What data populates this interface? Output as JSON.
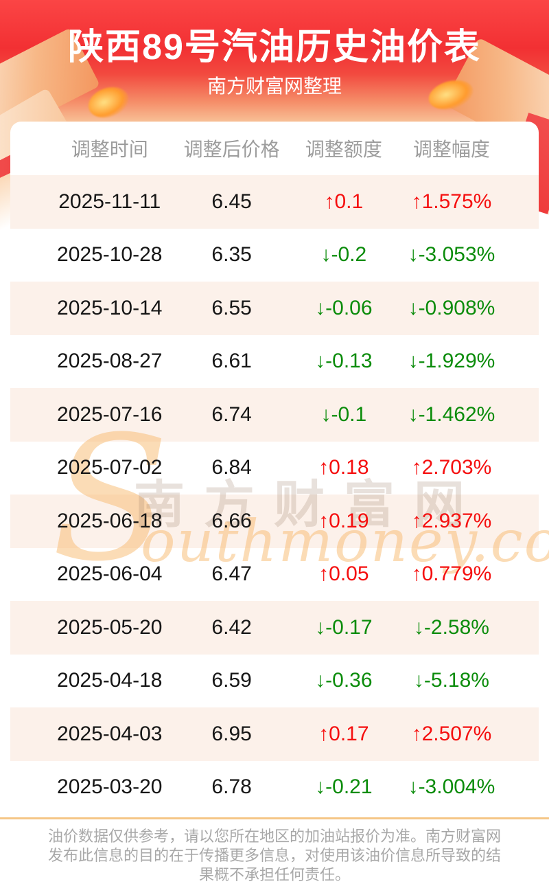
{
  "hero": {
    "title": "陕西89号汽油历史油价表",
    "subtitle": "南方财富网整理"
  },
  "table": {
    "columns": [
      "调整时间",
      "调整后价格",
      "调整额度",
      "调整幅度"
    ],
    "rows": [
      {
        "date": "2025-11-11",
        "price": "6.45",
        "change": "↑0.1",
        "percent": "↑1.575%",
        "dir": "up"
      },
      {
        "date": "2025-10-28",
        "price": "6.35",
        "change": "↓-0.2",
        "percent": "↓-3.053%",
        "dir": "down"
      },
      {
        "date": "2025-10-14",
        "price": "6.55",
        "change": "↓-0.06",
        "percent": "↓-0.908%",
        "dir": "down"
      },
      {
        "date": "2025-08-27",
        "price": "6.61",
        "change": "↓-0.13",
        "percent": "↓-1.929%",
        "dir": "down"
      },
      {
        "date": "2025-07-16",
        "price": "6.74",
        "change": "↓-0.1",
        "percent": "↓-1.462%",
        "dir": "down"
      },
      {
        "date": "2025-07-02",
        "price": "6.84",
        "change": "↑0.18",
        "percent": "↑2.703%",
        "dir": "up"
      },
      {
        "date": "2025-06-18",
        "price": "6.66",
        "change": "↑0.19",
        "percent": "↑2.937%",
        "dir": "up"
      },
      {
        "date": "2025-06-04",
        "price": "6.47",
        "change": "↑0.05",
        "percent": "↑0.779%",
        "dir": "up"
      },
      {
        "date": "2025-05-20",
        "price": "6.42",
        "change": "↓-0.17",
        "percent": "↓-2.58%",
        "dir": "down"
      },
      {
        "date": "2025-04-18",
        "price": "6.59",
        "change": "↓-0.36",
        "percent": "↓-5.18%",
        "dir": "down"
      },
      {
        "date": "2025-04-03",
        "price": "6.95",
        "change": "↑0.17",
        "percent": "↑2.507%",
        "dir": "up"
      },
      {
        "date": "2025-03-20",
        "price": "6.78",
        "change": "↓-0.21",
        "percent": "↓-3.004%",
        "dir": "down"
      }
    ]
  },
  "watermark": {
    "cn": "南方财富网",
    "en_initial": "S",
    "en_rest": "outhmoney.com"
  },
  "footer": {
    "disclaimer": "油价数据仅供参考，请以您所在地区的加油站报价为准。南方财富网发布此信息的目的在于传播更多信息，对使用该油价信息所导致的结果概不承担任何责任。"
  },
  "colors": {
    "up": "#f50f0f",
    "down": "#0b8c0b",
    "row_alt": "#fcf1ea",
    "divider": "#f5c686",
    "hero_red": "#f23033"
  }
}
